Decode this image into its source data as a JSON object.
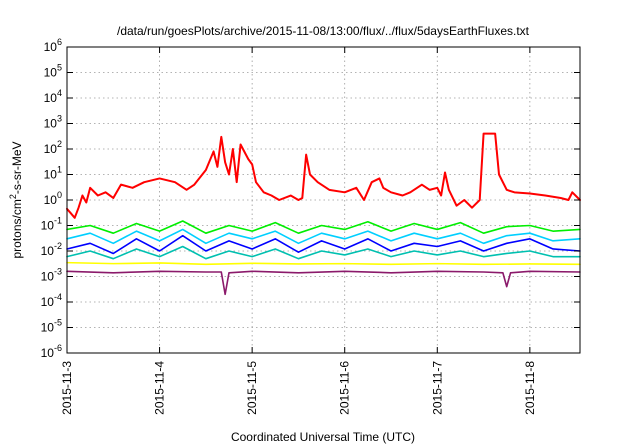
{
  "chart_data": {
    "type": "line",
    "title": "/data/run/goesPlots/archive/2015-11-08/13:00/flux/../flux/5daysEarthFluxes.txt",
    "xlabel": "Coordinated Universal Time (UTC)",
    "ylabel": {
      "pre": "protons/cm",
      "sup": "2",
      "post": "-s-sr-MeV"
    },
    "yscale": "log",
    "ylim": [
      1e-06,
      1000000.0
    ],
    "xlim": [
      "2015-11-03T00:00",
      "2015-11-08T13:00"
    ],
    "grid": true,
    "y_ticks": [
      {
        "value": 1e-06,
        "base": "10",
        "exp": "-6"
      },
      {
        "value": 1e-05,
        "base": "10",
        "exp": "-5"
      },
      {
        "value": 0.0001,
        "base": "10",
        "exp": "-4"
      },
      {
        "value": 0.001,
        "base": "10",
        "exp": "-3"
      },
      {
        "value": 0.01,
        "base": "10",
        "exp": "-2"
      },
      {
        "value": 0.1,
        "base": "10",
        "exp": "-1"
      },
      {
        "value": 1,
        "base": "10",
        "exp": "0"
      },
      {
        "value": 10.0,
        "base": "10",
        "exp": "1"
      },
      {
        "value": 100.0,
        "base": "10",
        "exp": "2"
      },
      {
        "value": 1000.0,
        "base": "10",
        "exp": "3"
      },
      {
        "value": 10000.0,
        "base": "10",
        "exp": "4"
      },
      {
        "value": 100000.0,
        "base": "10",
        "exp": "5"
      },
      {
        "value": 1000000.0,
        "base": "10",
        "exp": "6"
      }
    ],
    "x_ticks": [
      {
        "value": "2015-11-03T00:00",
        "label": "2015-11-3"
      },
      {
        "value": "2015-11-04T00:00",
        "label": "2015-11-4"
      },
      {
        "value": "2015-11-05T00:00",
        "label": "2015-11-5"
      },
      {
        "value": "2015-11-06T00:00",
        "label": "2015-11-6"
      },
      {
        "value": "2015-11-07T00:00",
        "label": "2015-11-7"
      },
      {
        "value": "2015-11-08T00:00",
        "label": "2015-11-8"
      }
    ],
    "series": [
      {
        "color": "#ff0000",
        "points": [
          [
            "2015-11-03T00:00",
            0.45
          ],
          [
            "2015-11-03T01:00",
            0.3
          ],
          [
            "2015-11-03T02:00",
            0.2
          ],
          [
            "2015-11-03T03:00",
            0.5
          ],
          [
            "2015-11-03T04:00",
            1.5
          ],
          [
            "2015-11-03T05:00",
            0.8
          ],
          [
            "2015-11-03T06:00",
            3.0
          ],
          [
            "2015-11-03T08:00",
            1.5
          ],
          [
            "2015-11-03T10:00",
            2.0
          ],
          [
            "2015-11-03T12:00",
            1.2
          ],
          [
            "2015-11-03T14:00",
            4.0
          ],
          [
            "2015-11-03T17:00",
            3.0
          ],
          [
            "2015-11-03T20:00",
            5.0
          ],
          [
            "2015-11-04T00:00",
            7.0
          ],
          [
            "2015-11-04T04:00",
            5.0
          ],
          [
            "2015-11-04T07:00",
            2.5
          ],
          [
            "2015-11-04T09:00",
            4.0
          ],
          [
            "2015-11-04T12:00",
            15.0
          ],
          [
            "2015-11-04T14:00",
            80.0
          ],
          [
            "2015-11-04T15:00",
            20.0
          ],
          [
            "2015-11-04T16:00",
            300.0
          ],
          [
            "2015-11-04T17:00",
            30.0
          ],
          [
            "2015-11-04T18:00",
            10.0
          ],
          [
            "2015-11-04T19:00",
            100.0
          ],
          [
            "2015-11-04T20:00",
            5.0
          ],
          [
            "2015-11-04T21:00",
            150.0
          ],
          [
            "2015-11-04T23:00",
            40.0
          ],
          [
            "2015-11-05T00:00",
            25.0
          ],
          [
            "2015-11-05T01:00",
            5.0
          ],
          [
            "2015-11-05T03:00",
            2.0
          ],
          [
            "2015-11-05T05:00",
            1.5
          ],
          [
            "2015-11-05T07:00",
            1.0
          ],
          [
            "2015-11-05T10:00",
            1.5
          ],
          [
            "2015-11-05T12:00",
            1.0
          ],
          [
            "2015-11-05T13:00",
            1.2
          ],
          [
            "2015-11-05T14:00",
            60.0
          ],
          [
            "2015-11-05T15:00",
            10.0
          ],
          [
            "2015-11-05T17:00",
            5.0
          ],
          [
            "2015-11-05T20:00",
            2.5
          ],
          [
            "2015-11-06T00:00",
            2.0
          ],
          [
            "2015-11-06T03:00",
            3.0
          ],
          [
            "2015-11-06T05:00",
            1.0
          ],
          [
            "2015-11-06T07:00",
            5.0
          ],
          [
            "2015-11-06T09:00",
            7.0
          ],
          [
            "2015-11-06T10:00",
            3.0
          ],
          [
            "2015-11-06T12:00",
            2.0
          ],
          [
            "2015-11-06T15:00",
            1.5
          ],
          [
            "2015-11-06T17:00",
            2.0
          ],
          [
            "2015-11-06T20:00",
            4.0
          ],
          [
            "2015-11-06T22:00",
            2.5
          ],
          [
            "2015-11-07T00:00",
            3.0
          ],
          [
            "2015-11-07T01:00",
            1.5
          ],
          [
            "2015-11-07T02:00",
            12.0
          ],
          [
            "2015-11-07T03:00",
            2.5
          ],
          [
            "2015-11-07T05:00",
            0.6
          ],
          [
            "2015-11-07T07:00",
            1.0
          ],
          [
            "2015-11-07T09:00",
            0.5
          ],
          [
            "2015-11-07T11:00",
            1.0
          ],
          [
            "2015-11-07T12:00",
            400.0
          ],
          [
            "2015-11-07T15:00",
            400.0
          ],
          [
            "2015-11-07T16:00",
            10.0
          ],
          [
            "2015-11-07T18:00",
            2.5
          ],
          [
            "2015-11-07T20:00",
            2.0
          ],
          [
            "2015-11-08T00:00",
            1.8
          ],
          [
            "2015-11-08T04:00",
            1.5
          ],
          [
            "2015-11-08T08:00",
            1.2
          ],
          [
            "2015-11-08T10:00",
            1.0
          ],
          [
            "2015-11-08T11:00",
            2.0
          ],
          [
            "2015-11-08T13:00",
            1.0
          ]
        ]
      },
      {
        "color": "#00ee00",
        "points": [
          [
            "2015-11-03T00:00",
            0.07
          ],
          [
            "2015-11-03T06:00",
            0.1
          ],
          [
            "2015-11-03T12:00",
            0.05
          ],
          [
            "2015-11-03T18:00",
            0.12
          ],
          [
            "2015-11-04T00:00",
            0.06
          ],
          [
            "2015-11-04T06:00",
            0.15
          ],
          [
            "2015-11-04T12:00",
            0.05
          ],
          [
            "2015-11-04T18:00",
            0.1
          ],
          [
            "2015-11-05T00:00",
            0.06
          ],
          [
            "2015-11-05T06:00",
            0.13
          ],
          [
            "2015-11-05T12:00",
            0.05
          ],
          [
            "2015-11-05T18:00",
            0.1
          ],
          [
            "2015-11-06T00:00",
            0.07
          ],
          [
            "2015-11-06T06:00",
            0.14
          ],
          [
            "2015-11-06T12:00",
            0.06
          ],
          [
            "2015-11-06T18:00",
            0.12
          ],
          [
            "2015-11-07T00:00",
            0.07
          ],
          [
            "2015-11-07T06:00",
            0.13
          ],
          [
            "2015-11-07T12:00",
            0.05
          ],
          [
            "2015-11-07T18:00",
            0.09
          ],
          [
            "2015-11-08T00:00",
            0.1
          ],
          [
            "2015-11-08T06:00",
            0.06
          ],
          [
            "2015-11-08T13:00",
            0.07
          ]
        ]
      },
      {
        "color": "#00cfff",
        "points": [
          [
            "2015-11-03T00:00",
            0.03
          ],
          [
            "2015-11-03T06:00",
            0.05
          ],
          [
            "2015-11-03T12:00",
            0.02
          ],
          [
            "2015-11-03T18:00",
            0.06
          ],
          [
            "2015-11-04T00:00",
            0.025
          ],
          [
            "2015-11-04T06:00",
            0.07
          ],
          [
            "2015-11-04T12:00",
            0.02
          ],
          [
            "2015-11-04T18:00",
            0.05
          ],
          [
            "2015-11-05T00:00",
            0.03
          ],
          [
            "2015-11-05T06:00",
            0.06
          ],
          [
            "2015-11-05T12:00",
            0.02
          ],
          [
            "2015-11-05T18:00",
            0.05
          ],
          [
            "2015-11-06T00:00",
            0.03
          ],
          [
            "2015-11-06T06:00",
            0.06
          ],
          [
            "2015-11-06T12:00",
            0.025
          ],
          [
            "2015-11-06T18:00",
            0.05
          ],
          [
            "2015-11-07T00:00",
            0.03
          ],
          [
            "2015-11-07T06:00",
            0.05
          ],
          [
            "2015-11-07T12:00",
            0.02
          ],
          [
            "2015-11-07T18:00",
            0.04
          ],
          [
            "2015-11-08T00:00",
            0.05
          ],
          [
            "2015-11-08T06:00",
            0.025
          ],
          [
            "2015-11-08T13:00",
            0.03
          ]
        ]
      },
      {
        "color": "#0000ff",
        "points": [
          [
            "2015-11-03T00:00",
            0.012
          ],
          [
            "2015-11-03T06:00",
            0.02
          ],
          [
            "2015-11-03T12:00",
            0.008
          ],
          [
            "2015-11-03T18:00",
            0.03
          ],
          [
            "2015-11-04T00:00",
            0.01
          ],
          [
            "2015-11-04T06:00",
            0.04
          ],
          [
            "2015-11-04T12:00",
            0.01
          ],
          [
            "2015-11-04T18:00",
            0.025
          ],
          [
            "2015-11-05T00:00",
            0.012
          ],
          [
            "2015-11-05T06:00",
            0.03
          ],
          [
            "2015-11-05T12:00",
            0.009
          ],
          [
            "2015-11-05T18:00",
            0.025
          ],
          [
            "2015-11-06T00:00",
            0.012
          ],
          [
            "2015-11-06T06:00",
            0.03
          ],
          [
            "2015-11-06T12:00",
            0.01
          ],
          [
            "2015-11-06T18:00",
            0.02
          ],
          [
            "2015-11-07T00:00",
            0.015
          ],
          [
            "2015-11-07T06:00",
            0.025
          ],
          [
            "2015-11-07T12:00",
            0.01
          ],
          [
            "2015-11-07T18:00",
            0.02
          ],
          [
            "2015-11-08T00:00",
            0.03
          ],
          [
            "2015-11-08T06:00",
            0.012
          ],
          [
            "2015-11-08T13:00",
            0.01
          ]
        ]
      },
      {
        "color": "#00c0b0",
        "points": [
          [
            "2015-11-03T00:00",
            0.006
          ],
          [
            "2015-11-03T06:00",
            0.01
          ],
          [
            "2015-11-03T12:00",
            0.005
          ],
          [
            "2015-11-03T18:00",
            0.012
          ],
          [
            "2015-11-04T00:00",
            0.006
          ],
          [
            "2015-11-04T06:00",
            0.015
          ],
          [
            "2015-11-04T12:00",
            0.005
          ],
          [
            "2015-11-04T18:00",
            0.01
          ],
          [
            "2015-11-05T00:00",
            0.006
          ],
          [
            "2015-11-05T06:00",
            0.012
          ],
          [
            "2015-11-05T12:00",
            0.005
          ],
          [
            "2015-11-05T18:00",
            0.01
          ],
          [
            "2015-11-06T00:00",
            0.007
          ],
          [
            "2015-11-06T06:00",
            0.012
          ],
          [
            "2015-11-06T12:00",
            0.006
          ],
          [
            "2015-11-06T18:00",
            0.01
          ],
          [
            "2015-11-07T00:00",
            0.007
          ],
          [
            "2015-11-07T06:00",
            0.01
          ],
          [
            "2015-11-07T12:00",
            0.006
          ],
          [
            "2015-11-07T18:00",
            0.008
          ],
          [
            "2015-11-08T00:00",
            0.01
          ],
          [
            "2015-11-08T06:00",
            0.006
          ],
          [
            "2015-11-08T13:00",
            0.006
          ]
        ]
      },
      {
        "color": "#ffff00",
        "points": [
          [
            "2015-11-03T00:00",
            0.0035
          ],
          [
            "2015-11-03T12:00",
            0.0032
          ],
          [
            "2015-11-04T00:00",
            0.0034
          ],
          [
            "2015-11-04T12:00",
            0.003
          ],
          [
            "2015-11-05T00:00",
            0.0033
          ],
          [
            "2015-11-05T12:00",
            0.0031
          ],
          [
            "2015-11-06T00:00",
            0.0032
          ],
          [
            "2015-11-06T12:00",
            0.003
          ],
          [
            "2015-11-07T00:00",
            0.0032
          ],
          [
            "2015-11-07T12:00",
            0.003
          ],
          [
            "2015-11-08T00:00",
            0.0031
          ],
          [
            "2015-11-08T13:00",
            0.003
          ]
        ]
      },
      {
        "color": "#8b1a6b",
        "points": [
          [
            "2015-11-03T00:00",
            0.0016
          ],
          [
            "2015-11-03T12:00",
            0.0014
          ],
          [
            "2015-11-04T00:00",
            0.0016
          ],
          [
            "2015-11-04T12:00",
            0.0015
          ],
          [
            "2015-11-04T16:00",
            0.0015
          ],
          [
            "2015-11-04T17:00",
            0.0002
          ],
          [
            "2015-11-04T18:00",
            0.0014
          ],
          [
            "2015-11-05T00:00",
            0.0016
          ],
          [
            "2015-11-05T12:00",
            0.0014
          ],
          [
            "2015-11-06T00:00",
            0.0016
          ],
          [
            "2015-11-06T12:00",
            0.0014
          ],
          [
            "2015-11-07T00:00",
            0.0016
          ],
          [
            "2015-11-07T12:00",
            0.0015
          ],
          [
            "2015-11-07T17:00",
            0.0014
          ],
          [
            "2015-11-07T18:00",
            0.0004
          ],
          [
            "2015-11-07T19:00",
            0.0014
          ],
          [
            "2015-11-08T00:00",
            0.0016
          ],
          [
            "2015-11-08T13:00",
            0.0015
          ]
        ]
      }
    ]
  }
}
